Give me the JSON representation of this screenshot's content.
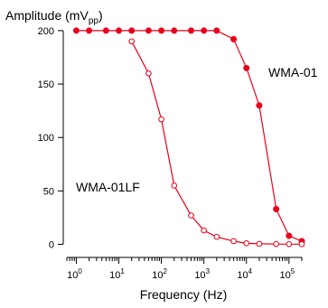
{
  "chart_data": {
    "type": "line",
    "title": "",
    "xlabel": "Frequency (Hz)",
    "ylabel": {
      "base": "Amplitude (mV",
      "subscript": "pp",
      "close": ")"
    },
    "xscale": "log",
    "xlim": [
      0.6,
      200000
    ],
    "ylim": [
      -8,
      205
    ],
    "yticks": [
      0,
      50,
      100,
      150,
      200
    ],
    "ytick_labels": [
      "0",
      "50",
      "100",
      "150",
      "200"
    ],
    "xticks": [
      1,
      10,
      100,
      1000,
      10000,
      100000
    ],
    "xtick_labels": [
      {
        "base": "10",
        "exp": "0"
      },
      {
        "base": "10",
        "exp": "1"
      },
      {
        "base": "10",
        "exp": "2"
      },
      {
        "base": "10",
        "exp": "3"
      },
      {
        "base": "10",
        "exp": "4"
      },
      {
        "base": "10",
        "exp": "5"
      }
    ],
    "grid": false,
    "legend": "none",
    "series": [
      {
        "name": "WMA-01",
        "color": "#e8001c",
        "marker": "filled-circle",
        "x": [
          1,
          2,
          5,
          10,
          20,
          50,
          100,
          200,
          500,
          1000,
          2000,
          5000,
          10000,
          20000,
          50000,
          100000,
          200000
        ],
        "y": [
          200,
          200,
          200,
          200,
          200,
          200,
          200,
          200,
          200,
          200,
          200,
          192,
          165,
          130,
          33,
          8,
          3
        ]
      },
      {
        "name": "WMA-01LF",
        "color": "#e8001c",
        "marker": "open-circle",
        "x": [
          20,
          50,
          100,
          200,
          500,
          1000,
          2000,
          5000,
          10000,
          20000,
          50000,
          100000,
          200000
        ],
        "y": [
          190,
          160,
          117,
          55,
          27,
          13,
          7,
          3,
          1,
          0.5,
          0.3,
          0.2,
          0.2
        ]
      }
    ]
  }
}
